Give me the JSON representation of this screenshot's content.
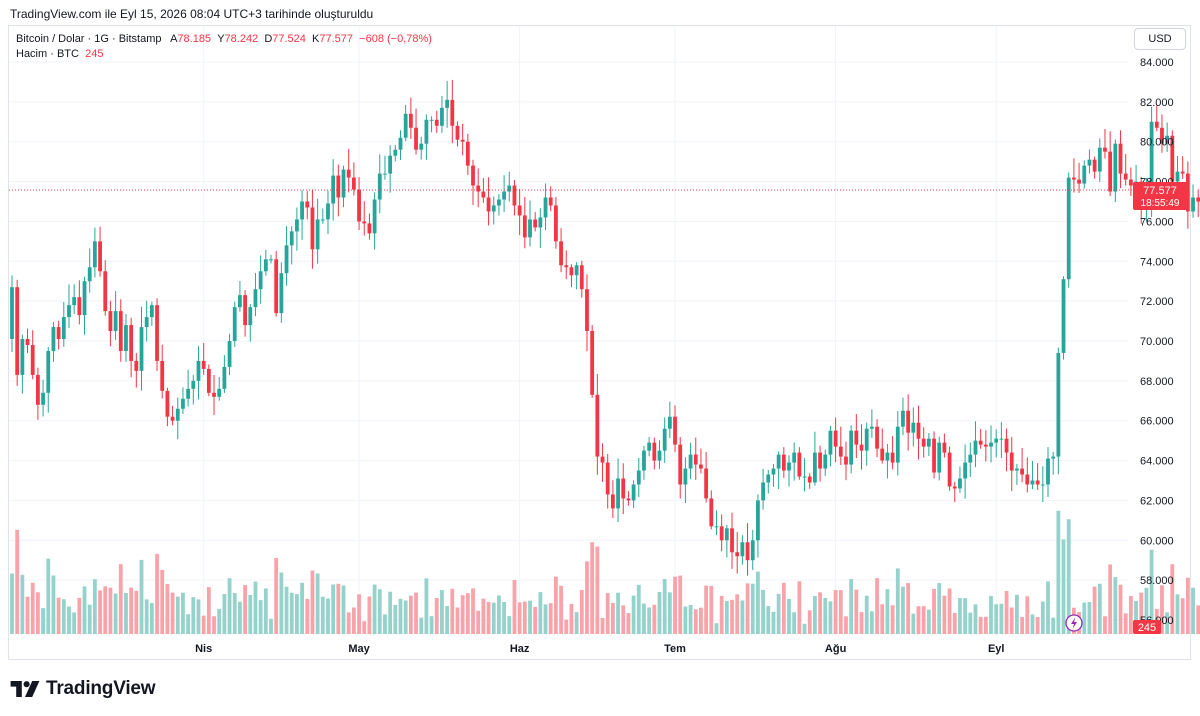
{
  "caption": "TradingView.com ile Eyl 15, 2026 08:04 UTC+3 tarihinde oluşturuldu",
  "brand": "TradingView",
  "currency_label": "USD",
  "legend": {
    "symbol": "Bitcoin / Dolar · 1G · Bitstamp",
    "open_label": "A",
    "open": "78.185",
    "high_label": "Y",
    "high": "78.242",
    "low_label": "D",
    "low": "77.524",
    "close_label": "K",
    "close": "77.577",
    "change": "−608 (−0,78%)",
    "volume_label": "Hacim · BTC",
    "volume": "245"
  },
  "price_tag": {
    "price": "77.577",
    "countdown": "18:55:49"
  },
  "volume_tag": "245",
  "colors": {
    "up": "#26a69a",
    "down": "#f23645",
    "up_volume": "#94d2cb",
    "down_volume": "#f7a3a9",
    "grid": "#f0f3fa"
  },
  "chart_data": {
    "type": "candlestick",
    "title": "Bitcoin / Dolar · 1G · Bitstamp",
    "ylim": [
      55000,
      85000
    ],
    "y_ticks": [
      "56.000",
      "58.000",
      "60.000",
      "62.000",
      "64.000",
      "66.000",
      "68.000",
      "70.000",
      "72.000",
      "74.000",
      "76.000",
      "78.000",
      "80.000",
      "82.000",
      "84.000"
    ],
    "y_tick_values": [
      56000,
      58000,
      60000,
      62000,
      64000,
      66000,
      68000,
      70000,
      72000,
      74000,
      76000,
      78000,
      80000,
      82000,
      84000
    ],
    "x_ticks": [
      {
        "label": "Nis",
        "index": 37
      },
      {
        "label": "May",
        "index": 67
      },
      {
        "label": "Haz",
        "index": 98
      },
      {
        "label": "Tem",
        "index": 128
      },
      {
        "label": "Ağu",
        "index": 159
      },
      {
        "label": "Eyl",
        "index": 190
      }
    ],
    "close": [
      72700,
      68300,
      70100,
      69800,
      68300,
      66800,
      67400,
      69500,
      70700,
      70100,
      71200,
      71800,
      72200,
      71300,
      73000,
      73700,
      75000,
      73500,
      71500,
      70500,
      71500,
      69500,
      70800,
      69000,
      68500,
      70700,
      71200,
      71800,
      69000,
      67500,
      66200,
      66000,
      66600,
      67100,
      67600,
      68000,
      69000,
      68600,
      67400,
      67200,
      67600,
      68700,
      70000,
      71700,
      72300,
      70800,
      71700,
      72600,
      73500,
      74100,
      74100,
      71400,
      73400,
      74800,
      75500,
      76100,
      77000,
      76700,
      74600,
      76100,
      76100,
      76900,
      78300,
      77200,
      78600,
      78200,
      77600,
      76000,
      75900,
      75400,
      77100,
      78400,
      78400,
      79300,
      79600,
      80200,
      81400,
      80700,
      79600,
      79900,
      81100,
      81100,
      80800,
      81700,
      82100,
      80800,
      80100,
      80000,
      78800,
      77800,
      77500,
      77200,
      76500,
      76800,
      77100,
      77500,
      77800,
      76800,
      76300,
      75200,
      76100,
      75700,
      76200,
      77200,
      76800,
      75000,
      73800,
      73700,
      73300,
      73800,
      72600,
      70500,
      67300,
      64200,
      63900,
      62300,
      61600,
      63100,
      62100,
      62000,
      62800,
      63500,
      64500,
      64900,
      64000,
      64500,
      65600,
      66200,
      64800,
      62800,
      63600,
      64300,
      63800,
      63600,
      62100,
      60700,
      60700,
      60000,
      60600,
      59400,
      59200,
      59900,
      59000,
      60000,
      62000,
      62900,
      63300,
      63600,
      64300,
      63500,
      63900,
      64400,
      63200,
      63200,
      62900,
      64400,
      63600,
      64300,
      65500,
      64700,
      64200,
      63800,
      65500,
      64800,
      64500,
      65600,
      65700,
      64600,
      64000,
      64400,
      63900,
      65700,
      66500,
      65400,
      65900,
      65100,
      64700,
      65100,
      63400,
      64900,
      64400,
      62700,
      62600,
      63100,
      63900,
      64300,
      65000,
      64800,
      64700,
      64900,
      65100,
      65100,
      64400,
      63500,
      63600,
      63300,
      62800,
      63000,
      62800,
      62800,
      64100,
      64200,
      69400,
      73100,
      78200,
      78100,
      77900,
      78800,
      79100,
      78500,
      79700,
      79500,
      77500,
      79900,
      78400,
      78100,
      77800,
      78000,
      76700,
      77200,
      81000,
      80700,
      79900,
      80300,
      78000,
      78500,
      78400,
      76500,
      77200,
      77000,
      77400,
      78200,
      77577
    ],
    "open_first": 70100,
    "volume_max": 62000
  }
}
